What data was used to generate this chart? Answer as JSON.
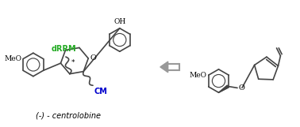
{
  "bg_color": "#ffffff",
  "title_text": "(-) - centrolobine",
  "title_color": "#000000",
  "title_fontsize": 7,
  "drrm_color": "#22aa22",
  "drrm_text": "dRRM",
  "drrm_fontsize": 7,
  "cm_color": "#0000cc",
  "cm_text": "CM",
  "cm_fontsize": 7,
  "arrow_color": "#999999",
  "struct_color": "#444444",
  "meo_label": "MeO",
  "oh_label": "OH",
  "o_label": "O",
  "star_label": "*",
  "fig_width": 3.78,
  "fig_height": 1.61,
  "dpi": 100
}
